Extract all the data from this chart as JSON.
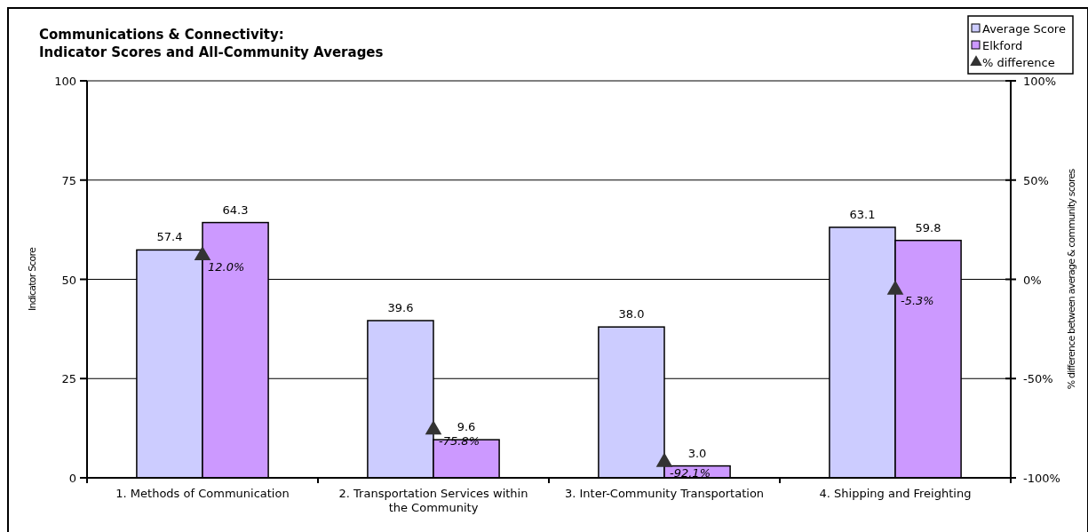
{
  "chart_data": {
    "type": "bar",
    "title": "Communications & Connectivity:\nIndicator Scores and All-Community Averages",
    "ylabel": "Indicator Score",
    "y2label": "% difference between average & community scores",
    "categories": [
      "1. Methods of Communication",
      "2. Transportation Services within the Community",
      "3. Inter-Community Transportation",
      "4. Shipping and Freighting"
    ],
    "series": [
      {
        "name": "Average Score",
        "color": "#ccccff",
        "values": [
          57.4,
          39.6,
          38.0,
          63.1
        ],
        "value_labels": [
          "57.4",
          "39.6",
          "38.0",
          "63.1"
        ]
      },
      {
        "name": "Elkford",
        "color": "#cc99ff",
        "values": [
          64.3,
          9.6,
          3.0,
          59.8
        ],
        "value_labels": [
          "64.3",
          "9.6",
          "3.0",
          "59.8"
        ]
      },
      {
        "name": "% difference",
        "type": "scatter",
        "axis": "y2",
        "marker": "triangle",
        "color": "#333333",
        "values": [
          12.0,
          -75.8,
          -92.1,
          -5.3
        ],
        "value_labels": [
          "12.0%",
          "-75.8%",
          "-92.1%",
          "-5.3%"
        ]
      }
    ],
    "ylim": [
      0,
      100
    ],
    "yticks": [
      0,
      25,
      50,
      75,
      100
    ],
    "y2lim": [
      -100,
      100
    ],
    "y2ticks": [
      {
        "value": -100,
        "label": "-100%"
      },
      {
        "value": -50,
        "label": "-50%"
      },
      {
        "value": 0,
        "label": "0%"
      },
      {
        "value": 50,
        "label": "50%"
      },
      {
        "value": 100,
        "label": "100%"
      }
    ],
    "grid": "y",
    "legend": "top right"
  }
}
